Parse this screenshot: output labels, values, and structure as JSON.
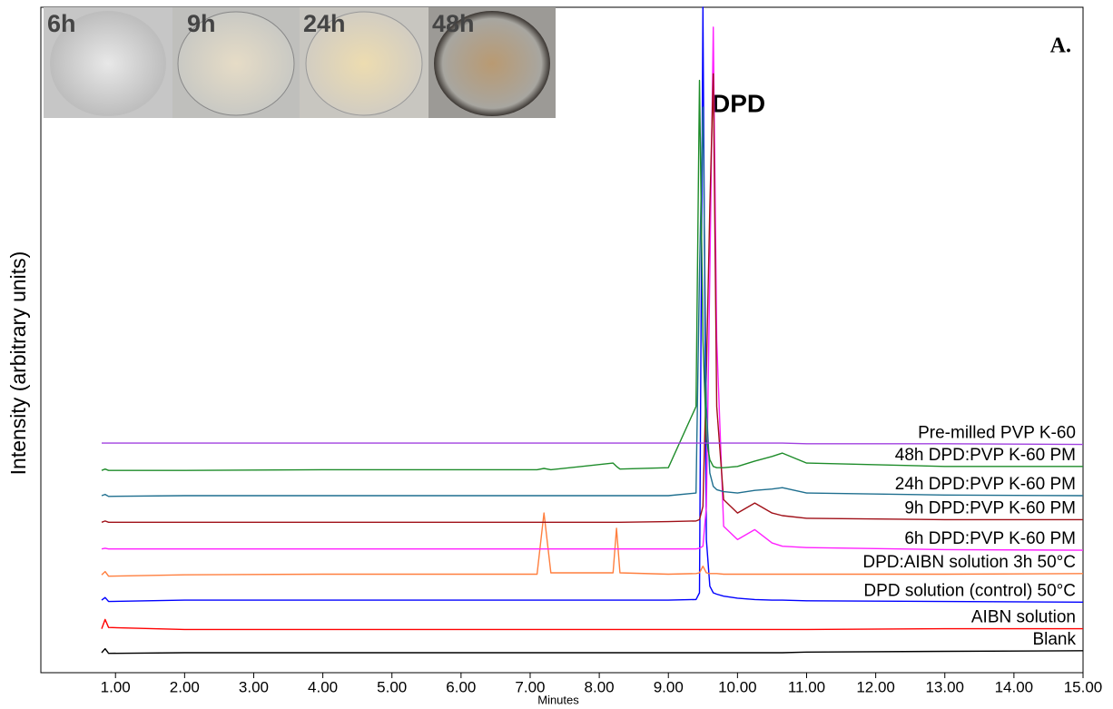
{
  "chart_data": {
    "type": "line",
    "x_label": "Minutes",
    "y_label": "Intensity (arbitrary units)",
    "annotations": {
      "panel": "A.",
      "peak": "DPD"
    },
    "inset_labels": [
      "6h",
      "9h",
      "24h",
      "48h"
    ],
    "xlim": [
      -0.08,
      15.0
    ],
    "ylim": [
      0,
      100
    ],
    "xticks": [
      {
        "value": 1,
        "label": "1.00"
      },
      {
        "value": 2,
        "label": "2.00"
      },
      {
        "value": 3,
        "label": "3.00"
      },
      {
        "value": 4,
        "label": "4.00"
      },
      {
        "value": 5,
        "label": "5.00"
      },
      {
        "value": 6,
        "label": "6.00"
      },
      {
        "value": 7,
        "label": "7.00"
      },
      {
        "value": 8,
        "label": "8.00"
      },
      {
        "value": 9,
        "label": "9.00"
      },
      {
        "value": 10,
        "label": "10.00"
      },
      {
        "value": 11,
        "label": "11.00"
      },
      {
        "value": 12,
        "label": "12.00"
      },
      {
        "value": 13,
        "label": "13.00"
      },
      {
        "value": 14,
        "label": "14.00"
      },
      {
        "value": 15,
        "label": "15.00"
      }
    ],
    "x": [
      0.8,
      0.85,
      0.9,
      2.0,
      4.0,
      6.0,
      7.1,
      7.2,
      7.3,
      8.2,
      8.25,
      8.3,
      9.0,
      9.4,
      9.45,
      9.5,
      9.55,
      9.6,
      9.65,
      9.7,
      9.8,
      10.0,
      10.25,
      10.5,
      10.65,
      11.0,
      13.0,
      15.0
    ],
    "series": [
      {
        "name": "Blank",
        "color": "#000000",
        "values": [
          3.0,
          3.6,
          2.9,
          3.0,
          3.0,
          3.0,
          3.0,
          3.0,
          3.0,
          3.0,
          3.0,
          3.0,
          3.0,
          3.0,
          3.0,
          3.0,
          3.0,
          3.0,
          3.0,
          3.0,
          3.0,
          3.0,
          3.0,
          3.0,
          3.0,
          3.1,
          3.2,
          3.3
        ]
      },
      {
        "name": "AIBN solution",
        "color": "#ff0000",
        "values": [
          6.6,
          8.0,
          6.8,
          6.5,
          6.5,
          6.5,
          6.5,
          6.5,
          6.5,
          6.5,
          6.5,
          6.5,
          6.5,
          6.5,
          6.5,
          6.5,
          6.5,
          6.5,
          6.5,
          6.5,
          6.5,
          6.5,
          6.5,
          6.5,
          6.5,
          6.5,
          6.6,
          6.6
        ]
      },
      {
        "name": "DPD solution (control) 50°C",
        "color": "#0000ff",
        "values": [
          10.9,
          11.3,
          10.7,
          10.9,
          10.9,
          10.9,
          10.9,
          10.9,
          10.9,
          10.9,
          10.9,
          10.9,
          10.9,
          11.0,
          12.0,
          100,
          20.0,
          13.0,
          12.0,
          11.8,
          11.5,
          11.2,
          11.0,
          10.9,
          10.9,
          10.8,
          10.7,
          10.6
        ]
      },
      {
        "name": "DPD:AIBN solution 3h 50°C",
        "color": "#ff7f3f",
        "values": [
          14.7,
          15.2,
          14.5,
          14.7,
          14.8,
          14.8,
          14.8,
          24.0,
          15.0,
          15.0,
          21.7,
          15.0,
          14.8,
          14.9,
          15.0,
          16.0,
          15.0,
          14.9,
          14.9,
          14.9,
          14.8,
          14.8,
          14.8,
          14.8,
          14.8,
          14.8,
          14.8,
          14.9
        ]
      },
      {
        "name": "6h DPD:PVP K-60 PM",
        "color": "#ff20ff",
        "values": [
          18.6,
          18.7,
          18.6,
          18.6,
          18.6,
          18.6,
          18.6,
          18.6,
          18.6,
          18.6,
          18.6,
          18.6,
          18.6,
          18.6,
          18.7,
          19.0,
          25.0,
          60.0,
          97.0,
          50.0,
          22.0,
          20.0,
          21.5,
          19.5,
          19.0,
          18.8,
          18.5,
          18.4
        ]
      },
      {
        "name": "9h DPD:PVP K-60 PM",
        "color": "#a01018",
        "values": [
          22.6,
          22.8,
          22.6,
          22.6,
          22.6,
          22.6,
          22.6,
          22.6,
          22.6,
          22.6,
          22.6,
          22.6,
          22.7,
          22.8,
          23.0,
          25.0,
          45.0,
          70.0,
          90.0,
          40.0,
          26.0,
          24.0,
          25.5,
          24.0,
          23.6,
          23.2,
          23.0,
          23.0
        ]
      },
      {
        "name": "24h DPD:PVP K-60 PM",
        "color": "#1f6f8f",
        "values": [
          26.6,
          26.8,
          26.5,
          26.6,
          26.6,
          26.6,
          26.6,
          26.6,
          26.6,
          26.6,
          26.6,
          26.6,
          26.6,
          27.0,
          60.0,
          85.0,
          40.0,
          30.0,
          28.0,
          27.5,
          27.2,
          27.0,
          27.4,
          27.6,
          27.8,
          27.0,
          26.7,
          26.6
        ]
      },
      {
        "name": "48h DPD:PVP K-60 PM",
        "color": "#1e8c2a",
        "values": [
          30.4,
          30.6,
          30.4,
          30.4,
          30.5,
          30.5,
          30.5,
          30.7,
          30.5,
          31.5,
          31.0,
          30.6,
          30.8,
          40.0,
          89.0,
          50.0,
          35.0,
          32.0,
          31.0,
          30.8,
          30.8,
          31.0,
          31.8,
          32.5,
          33.0,
          31.5,
          31.0,
          31.0
        ]
      },
      {
        "name": "Pre-milled PVP K-60",
        "color": "#a040e0",
        "values": [
          34.5,
          34.5,
          34.5,
          34.5,
          34.5,
          34.5,
          34.5,
          34.5,
          34.5,
          34.5,
          34.5,
          34.5,
          34.5,
          34.5,
          34.5,
          34.5,
          34.5,
          34.5,
          34.5,
          34.5,
          34.5,
          34.5,
          34.5,
          34.5,
          34.5,
          34.4,
          34.4,
          34.3
        ]
      }
    ]
  }
}
